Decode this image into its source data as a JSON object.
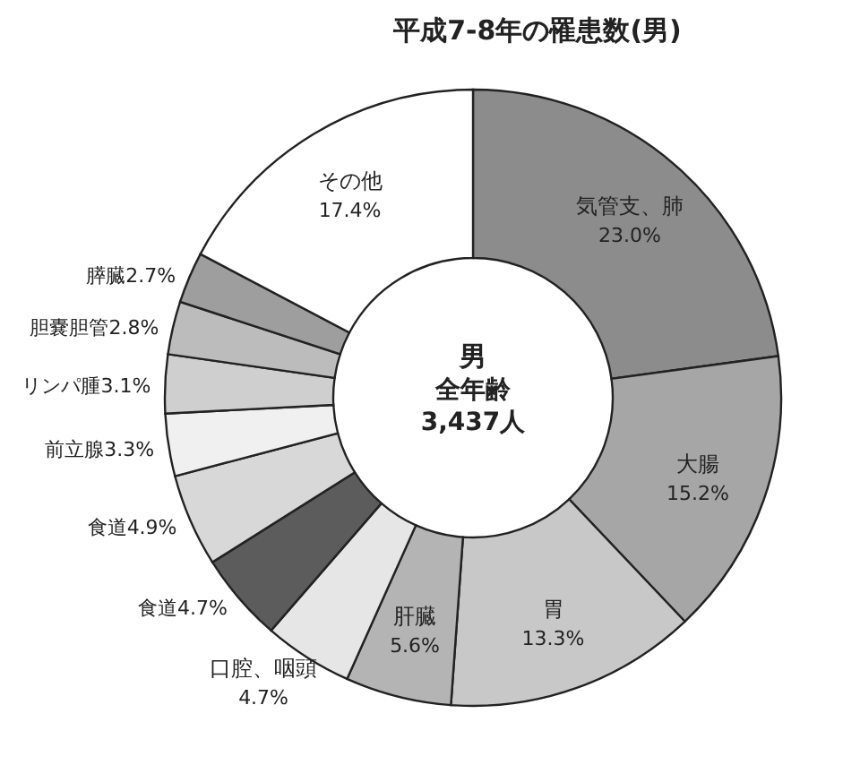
{
  "chart_data": {
    "type": "donut",
    "title": "平成7-8年の罹患数(男)",
    "categories": [
      "気管支、肺",
      "大腸",
      "胃",
      "肝臓",
      "口腔、咽頭",
      "食道",
      "食道",
      "前立腺",
      "リンパ腫",
      "胆嚢胆管",
      "膵臓",
      "その他"
    ],
    "values": [
      23.0,
      15.2,
      13.3,
      5.6,
      4.7,
      4.7,
      4.9,
      3.3,
      3.1,
      2.8,
      2.7,
      17.4
    ],
    "value_labels": [
      "23.0%",
      "15.2%",
      "13.3%",
      "5.6%",
      "4.7%",
      "4.7%",
      "4.9%",
      "3.3%",
      "3.1%",
      "2.8%",
      "2.7%",
      "17.4%"
    ],
    "colors": [
      "#8c8c8c",
      "#a6a6a6",
      "#c8c8c8",
      "#b4b4b4",
      "#e6e6e6",
      "#5c5c5c",
      "#d8d8d8",
      "#f0f0f0",
      "#cfcfcf",
      "#bcbcbc",
      "#9e9e9e",
      "#ffffff"
    ],
    "annotations": [
      "男",
      "全年齢",
      "3,437人"
    ]
  }
}
